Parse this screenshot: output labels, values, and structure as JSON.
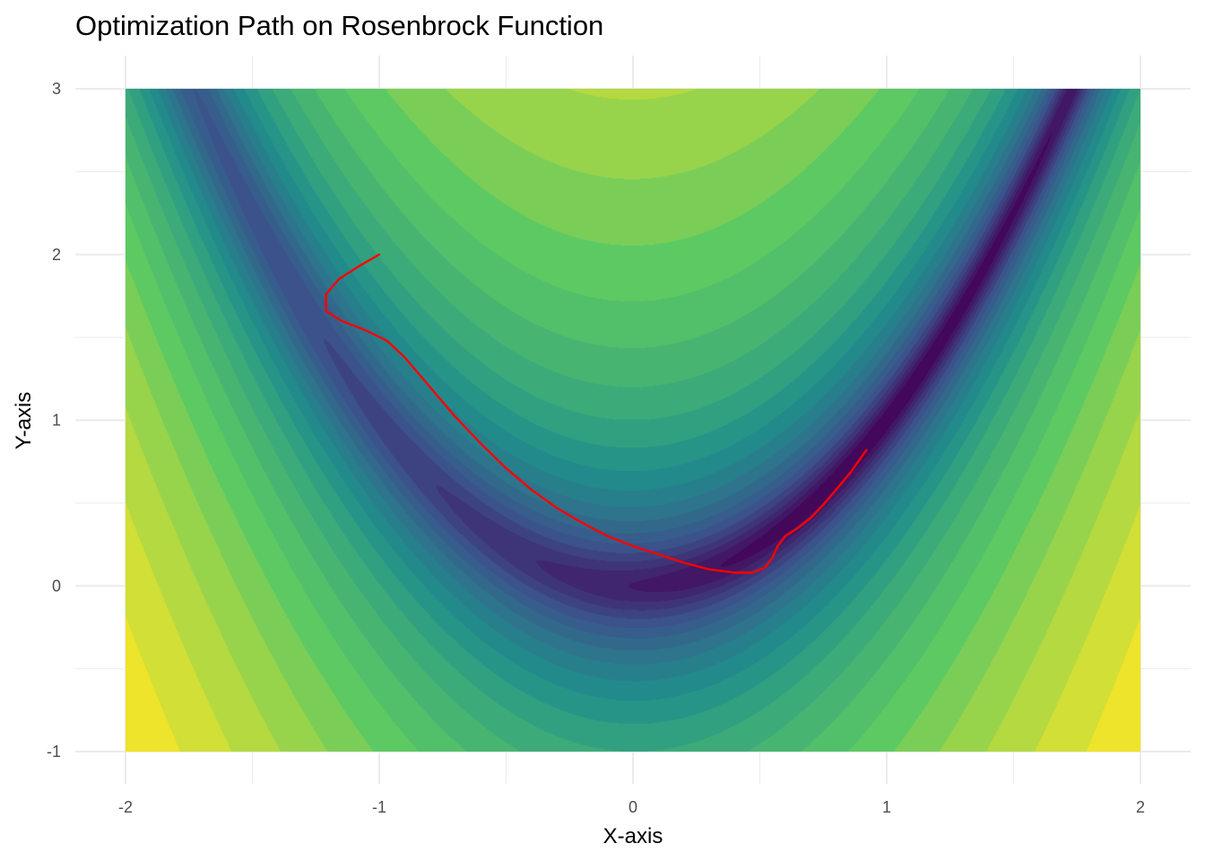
{
  "chart_data": {
    "type": "contour",
    "title": "Optimization Path on Rosenbrock Function",
    "xlabel": "X-axis",
    "ylabel": "Y-axis",
    "xlim": [
      -2,
      2
    ],
    "ylim": [
      -1,
      3
    ],
    "x_ticks": [
      -2,
      -1,
      0,
      1,
      2
    ],
    "y_ticks": [
      -1,
      0,
      1,
      2,
      3
    ],
    "x_tick_labels": [
      "-2",
      "-1",
      "0",
      "1",
      "2"
    ],
    "y_tick_labels": [
      "-1",
      "0",
      "1",
      "2",
      "3"
    ],
    "grid": true,
    "colormap": "viridis",
    "colormap_stops": [
      "#440154",
      "#3b528b",
      "#21908c",
      "#5dc963",
      "#fde725"
    ],
    "contour_line_color": "#dddddd",
    "path_color": "#ff0000",
    "path": {
      "x": [
        -1.0,
        -1.08,
        -1.16,
        -1.21,
        -1.21,
        -1.15,
        -1.05,
        -0.97,
        -0.9,
        -0.8,
        -0.7,
        -0.6,
        -0.5,
        -0.4,
        -0.3,
        -0.2,
        -0.1,
        0.0,
        0.1,
        0.2,
        0.3,
        0.4,
        0.47,
        0.52,
        0.55,
        0.57,
        0.6,
        0.65,
        0.7,
        0.75,
        0.8,
        0.86,
        0.92
      ],
      "y": [
        2.0,
        1.93,
        1.85,
        1.76,
        1.66,
        1.6,
        1.54,
        1.48,
        1.38,
        1.2,
        1.02,
        0.86,
        0.71,
        0.58,
        0.47,
        0.38,
        0.3,
        0.24,
        0.19,
        0.14,
        0.1,
        0.08,
        0.08,
        0.11,
        0.17,
        0.24,
        0.3,
        0.35,
        0.41,
        0.49,
        0.58,
        0.69,
        0.82
      ]
    }
  }
}
